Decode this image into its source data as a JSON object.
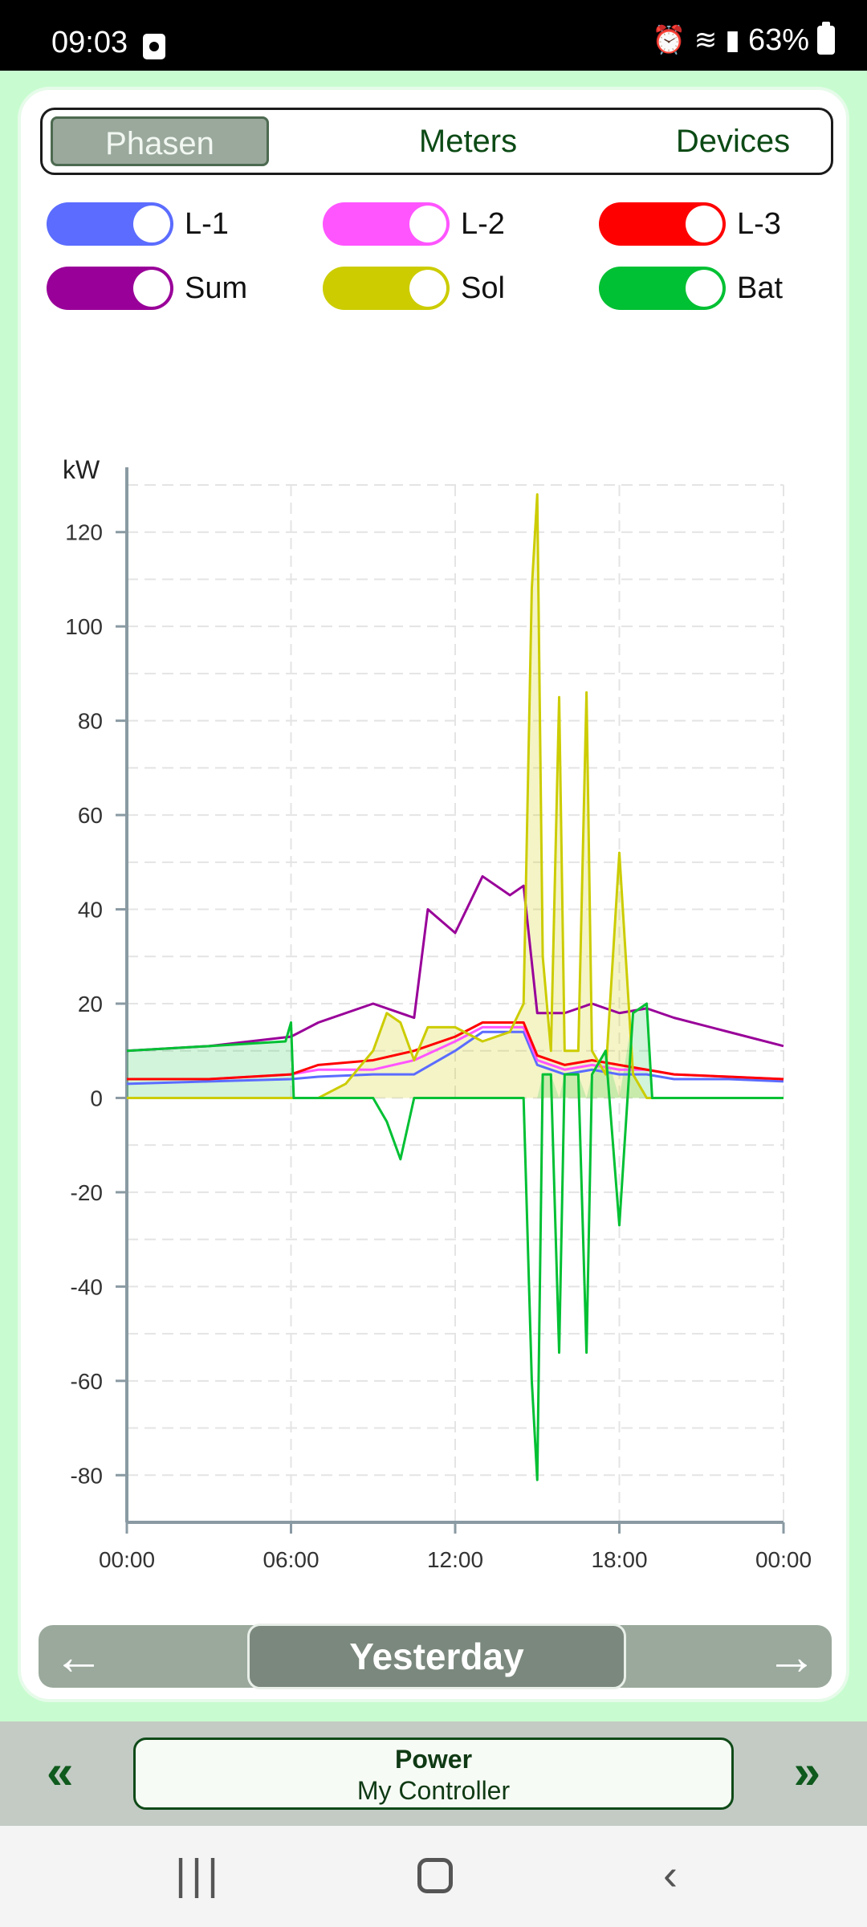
{
  "status": {
    "time": "09:03",
    "battery": "63%"
  },
  "tabs": [
    {
      "label": "Phasen",
      "active": true
    },
    {
      "label": "Meters",
      "active": false
    },
    {
      "label": "Devices",
      "active": false
    }
  ],
  "toggles": [
    {
      "label": "L-1",
      "color": "#5b6cff",
      "on": true
    },
    {
      "label": "L-2",
      "color": "#ff55ff",
      "on": true
    },
    {
      "label": "L-3",
      "color": "#ff0000",
      "on": true
    },
    {
      "label": "Sum",
      "color": "#990099",
      "on": true
    },
    {
      "label": "Sol",
      "color": "#cccc00",
      "on": true
    },
    {
      "label": "Bat",
      "color": "#00c033",
      "on": true
    }
  ],
  "nav": {
    "prev": "←",
    "current": "Yesterday",
    "next": "→"
  },
  "bottom": {
    "prev": "«",
    "title": "Power",
    "subtitle": "My Controller",
    "next": "»"
  },
  "chart_data": {
    "type": "line",
    "ylabel": "kW",
    "ylim": [
      -90,
      130
    ],
    "yticks": [
      120,
      100,
      80,
      60,
      40,
      20,
      0,
      -20,
      -40,
      -60,
      -80
    ],
    "xlim": [
      0,
      24
    ],
    "xticks": [
      "00:00",
      "06:00",
      "12:00",
      "18:00",
      "00:00"
    ],
    "grid": true,
    "series": [
      {
        "name": "L-1",
        "color": "#5b6cff",
        "x": [
          0,
          3,
          6,
          7,
          9,
          10.5,
          12,
          13,
          14.5,
          15,
          16,
          17,
          18,
          19,
          20,
          22,
          24
        ],
        "y": [
          3,
          3.5,
          4,
          4.5,
          5,
          5,
          10,
          14,
          14,
          7,
          5,
          6,
          5,
          5,
          4,
          4,
          3.5
        ]
      },
      {
        "name": "L-2",
        "color": "#ff55ff",
        "x": [
          0,
          3,
          6,
          7,
          9,
          10.5,
          12,
          13,
          14.5,
          15,
          16,
          17,
          18,
          19,
          20,
          22,
          24
        ],
        "y": [
          4,
          4,
          5,
          6,
          6,
          8,
          12,
          15,
          15,
          8,
          6,
          7,
          6,
          6,
          5,
          4.5,
          4
        ]
      },
      {
        "name": "L-3",
        "color": "#ff0000",
        "x": [
          0,
          3,
          6,
          7,
          9,
          10.5,
          12,
          13,
          14.5,
          15,
          16,
          17,
          18,
          19,
          20,
          22,
          24
        ],
        "y": [
          4,
          4,
          5,
          7,
          8,
          10,
          13,
          16,
          16,
          9,
          7,
          8,
          7,
          6,
          5,
          4.5,
          4
        ]
      },
      {
        "name": "Sum",
        "color": "#990099",
        "x": [
          0,
          3,
          6,
          7,
          9,
          10.5,
          11,
          12,
          13,
          14,
          14.5,
          15,
          16,
          17,
          18,
          19,
          20,
          22,
          24
        ],
        "y": [
          10,
          11,
          13,
          16,
          20,
          17,
          40,
          35,
          47,
          43,
          45,
          18,
          18,
          20,
          18,
          19,
          17,
          14,
          11
        ]
      },
      {
        "name": "Sol",
        "color": "#cccc00",
        "x": [
          0,
          6,
          7,
          8,
          9,
          9.5,
          10,
          10.5,
          11,
          12,
          13,
          14,
          14.5,
          14.8,
          15,
          15.2,
          15.5,
          15.8,
          16,
          16.5,
          16.8,
          17,
          17.5,
          18,
          18.5,
          19,
          20,
          24
        ],
        "y": [
          0,
          0,
          0,
          3,
          10,
          18,
          16,
          8,
          15,
          15,
          12,
          14,
          20,
          108,
          128,
          30,
          10,
          85,
          10,
          10,
          86,
          10,
          5,
          52,
          5,
          0,
          0,
          0
        ]
      },
      {
        "name": "Bat",
        "color": "#00c033",
        "x": [
          0,
          3,
          5.8,
          6,
          6.1,
          9,
          9.5,
          10,
          10.5,
          12,
          14.5,
          14.8,
          15,
          15.2,
          15.5,
          15.8,
          16,
          16.5,
          16.8,
          17,
          17.5,
          18,
          18.5,
          19,
          19.2,
          24
        ],
        "y": [
          10,
          11,
          12,
          16,
          0,
          0,
          -5,
          -13,
          0,
          0,
          0,
          -60,
          -81,
          5,
          5,
          -54,
          5,
          5,
          -54,
          5,
          10,
          -27,
          18,
          20,
          0,
          0
        ]
      }
    ]
  }
}
